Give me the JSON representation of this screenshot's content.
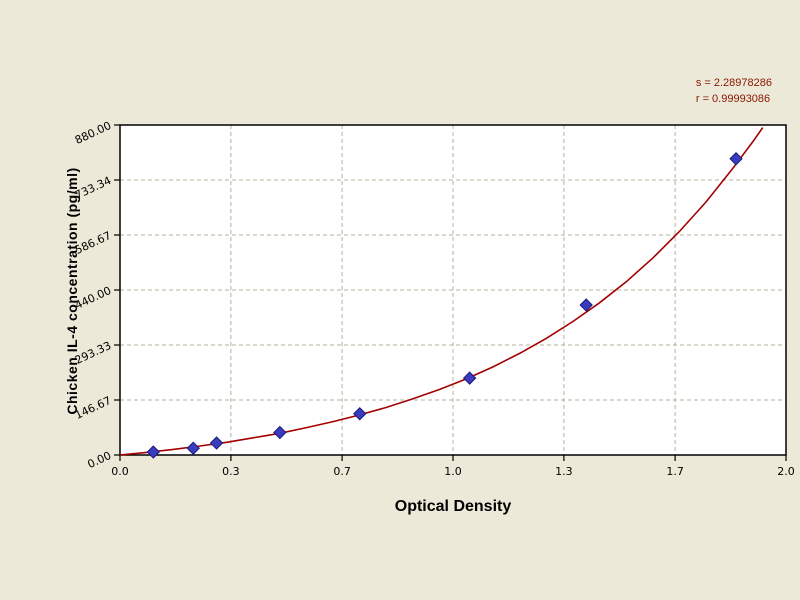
{
  "page": {
    "background": "#ece9d8"
  },
  "stats": {
    "s_label": "s = 2.28978286",
    "r_label": "r = 0.99993086"
  },
  "chart_data": {
    "type": "scatter",
    "title": "",
    "xlabel": "Optical Density",
    "ylabel": "Chicken IL-4 concentration (pg/ml)",
    "xlim": [
      0,
      2.0
    ],
    "ylim": [
      0,
      880
    ],
    "grid": true,
    "legend": "none",
    "x_ticks": [
      0,
      0.333,
      0.667,
      1.0,
      1.333,
      1.667,
      2.0
    ],
    "x_tick_labels": [
      "0.0",
      "0.3",
      "0.7",
      "1.0",
      "1.3",
      "1.7",
      "2.0"
    ],
    "y_ticks": [
      0,
      146.67,
      293.33,
      440.0,
      586.67,
      733.34,
      880.0
    ],
    "y_tick_labels": [
      "0.00",
      "146.67",
      "293.33",
      "440.00",
      "586.67",
      "733.34",
      "880.00"
    ],
    "points": [
      [
        0.1,
        8
      ],
      [
        0.22,
        18
      ],
      [
        0.29,
        32
      ],
      [
        0.48,
        60
      ],
      [
        0.72,
        110
      ],
      [
        1.05,
        205
      ],
      [
        1.4,
        400
      ],
      [
        1.85,
        790
      ]
    ],
    "curve": [
      [
        0.0,
        0
      ],
      [
        0.08,
        7
      ],
      [
        0.16,
        15
      ],
      [
        0.24,
        24
      ],
      [
        0.32,
        34
      ],
      [
        0.4,
        46
      ],
      [
        0.48,
        58
      ],
      [
        0.56,
        73
      ],
      [
        0.64,
        89
      ],
      [
        0.72,
        107
      ],
      [
        0.8,
        127
      ],
      [
        0.88,
        150
      ],
      [
        0.96,
        175
      ],
      [
        1.04,
        203
      ],
      [
        1.12,
        235
      ],
      [
        1.2,
        271
      ],
      [
        1.28,
        311
      ],
      [
        1.36,
        356
      ],
      [
        1.44,
        406
      ],
      [
        1.52,
        462
      ],
      [
        1.6,
        525
      ],
      [
        1.68,
        596
      ],
      [
        1.76,
        675
      ],
      [
        1.84,
        764
      ],
      [
        1.9,
        835
      ],
      [
        1.93,
        873
      ]
    ],
    "colors": {
      "curve": "#a40000",
      "point_fill": "#3b3bbd",
      "point_stroke": "#1a1a80",
      "grid": "#b3b39e",
      "frame": "#000000",
      "plot_background": "#ffffff"
    }
  }
}
